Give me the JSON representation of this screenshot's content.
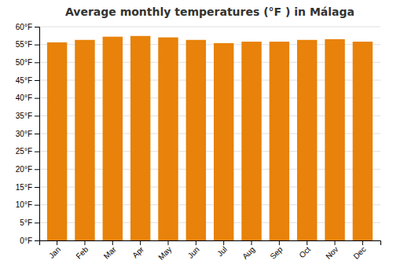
{
  "chart_data": {
    "type": "bar",
    "title": "Average monthly temperatures (°F ) in Málaga",
    "categories": [
      "Jan",
      "Feb",
      "Mar",
      "Apr",
      "May",
      "Jun",
      "Jul",
      "Aug",
      "Sep",
      "Oct",
      "Nov",
      "Dec"
    ],
    "values": [
      55.6,
      56.3,
      57.2,
      57.4,
      57.0,
      56.3,
      55.4,
      55.8,
      55.8,
      56.3,
      56.5,
      55.8
    ],
    "color": "#E8820A",
    "ylim": [
      0,
      60
    ],
    "yticks": [
      {
        "value": 0,
        "label": "0°F"
      },
      {
        "value": 5,
        "label": "5°F"
      },
      {
        "value": 10,
        "label": "10°F"
      },
      {
        "value": 15,
        "label": "15°F"
      },
      {
        "value": 20,
        "label": "20°F"
      },
      {
        "value": 25,
        "label": "25°F"
      },
      {
        "value": 30,
        "label": "30°F"
      },
      {
        "value": 35,
        "label": "35°F"
      },
      {
        "value": 40,
        "label": "40°F"
      },
      {
        "value": 45,
        "label": "45°F"
      },
      {
        "value": 50,
        "label": "50°F"
      },
      {
        "value": 55,
        "label": "55°F"
      },
      {
        "value": 60,
        "label": "60°F"
      }
    ],
    "grid": true
  }
}
